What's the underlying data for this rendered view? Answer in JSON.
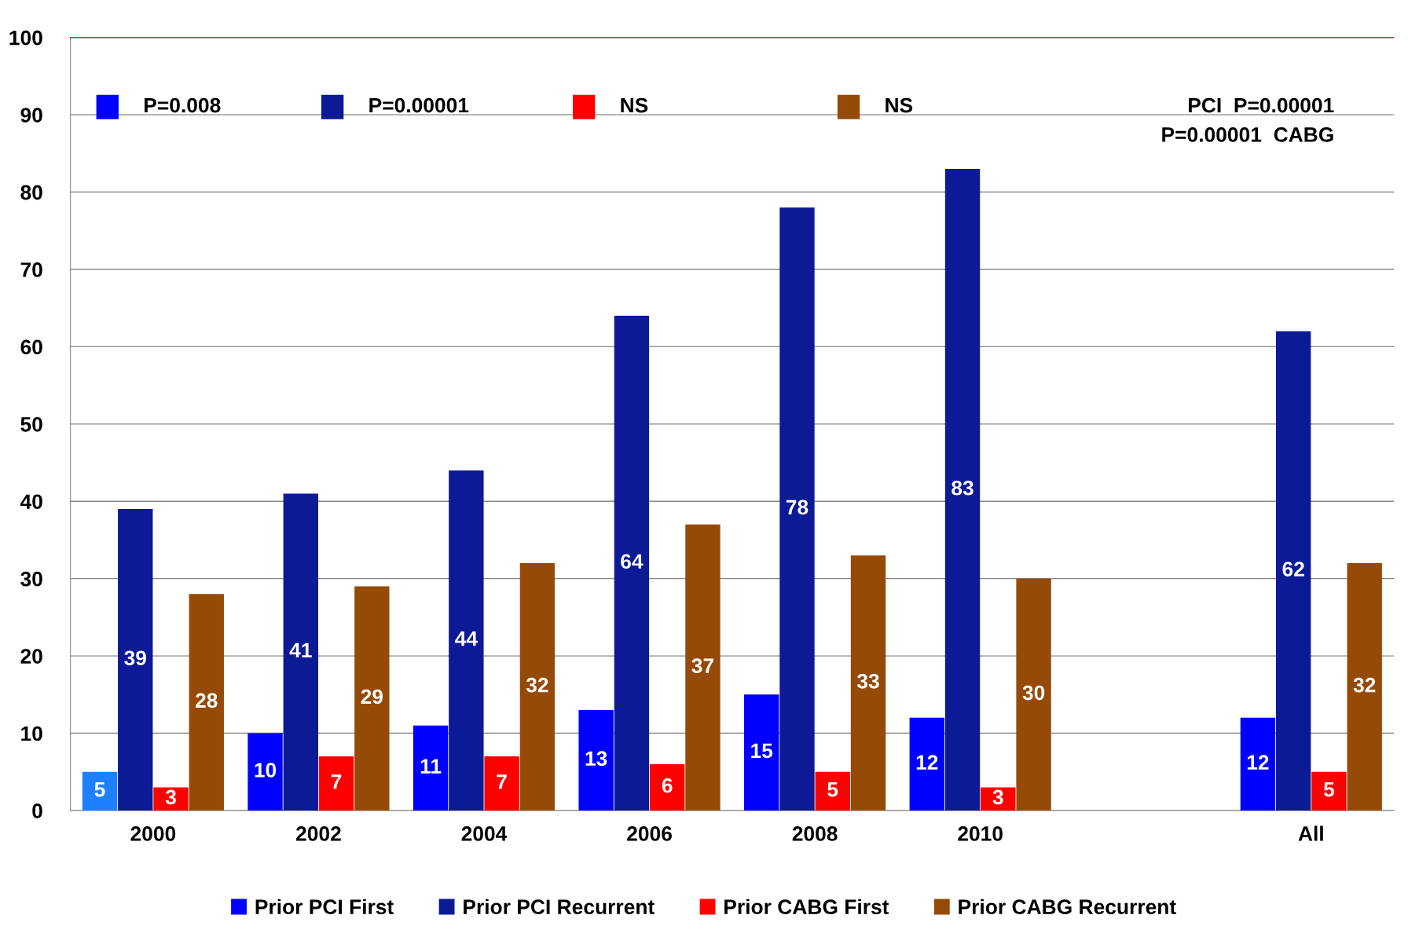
{
  "chart_data": {
    "type": "bar",
    "categories": [
      "2000",
      "2002",
      "2004",
      "2006",
      "2008",
      "2010",
      null,
      "All"
    ],
    "series": [
      {
        "name": "Prior PCI First",
        "color": "#0000ff",
        "colors": [
          "#1e7fff",
          "#0000ff",
          "#0000ff",
          "#0000ff",
          "#0000ff",
          "#0000ff",
          "#0000ff",
          "#0000ff"
        ],
        "values": [
          5,
          10,
          11,
          13,
          15,
          12,
          null,
          12
        ]
      },
      {
        "name": "Prior PCI Recurrent",
        "color": "#0c1a96",
        "values": [
          39,
          41,
          44,
          64,
          78,
          83,
          null,
          62
        ]
      },
      {
        "name": "Prior CABG First",
        "color": "#ff0000",
        "values": [
          3,
          7,
          7,
          6,
          5,
          3,
          null,
          5
        ]
      },
      {
        "name": "Prior CABG Recurrent",
        "color": "#964a08",
        "values": [
          28,
          29,
          32,
          37,
          33,
          30,
          null,
          32
        ]
      }
    ],
    "annotations": [
      "P=0.008",
      "P=0.00001",
      "NS",
      "NS",
      "PCI  P=0.00001",
      "P=0.00001  CABG"
    ],
    "ylim": [
      0,
      100
    ],
    "yticks": [
      0,
      10,
      20,
      30,
      40,
      50,
      60,
      70,
      80,
      90,
      100
    ],
    "grid": "y",
    "legend": "bottom",
    "data_labels": true
  }
}
